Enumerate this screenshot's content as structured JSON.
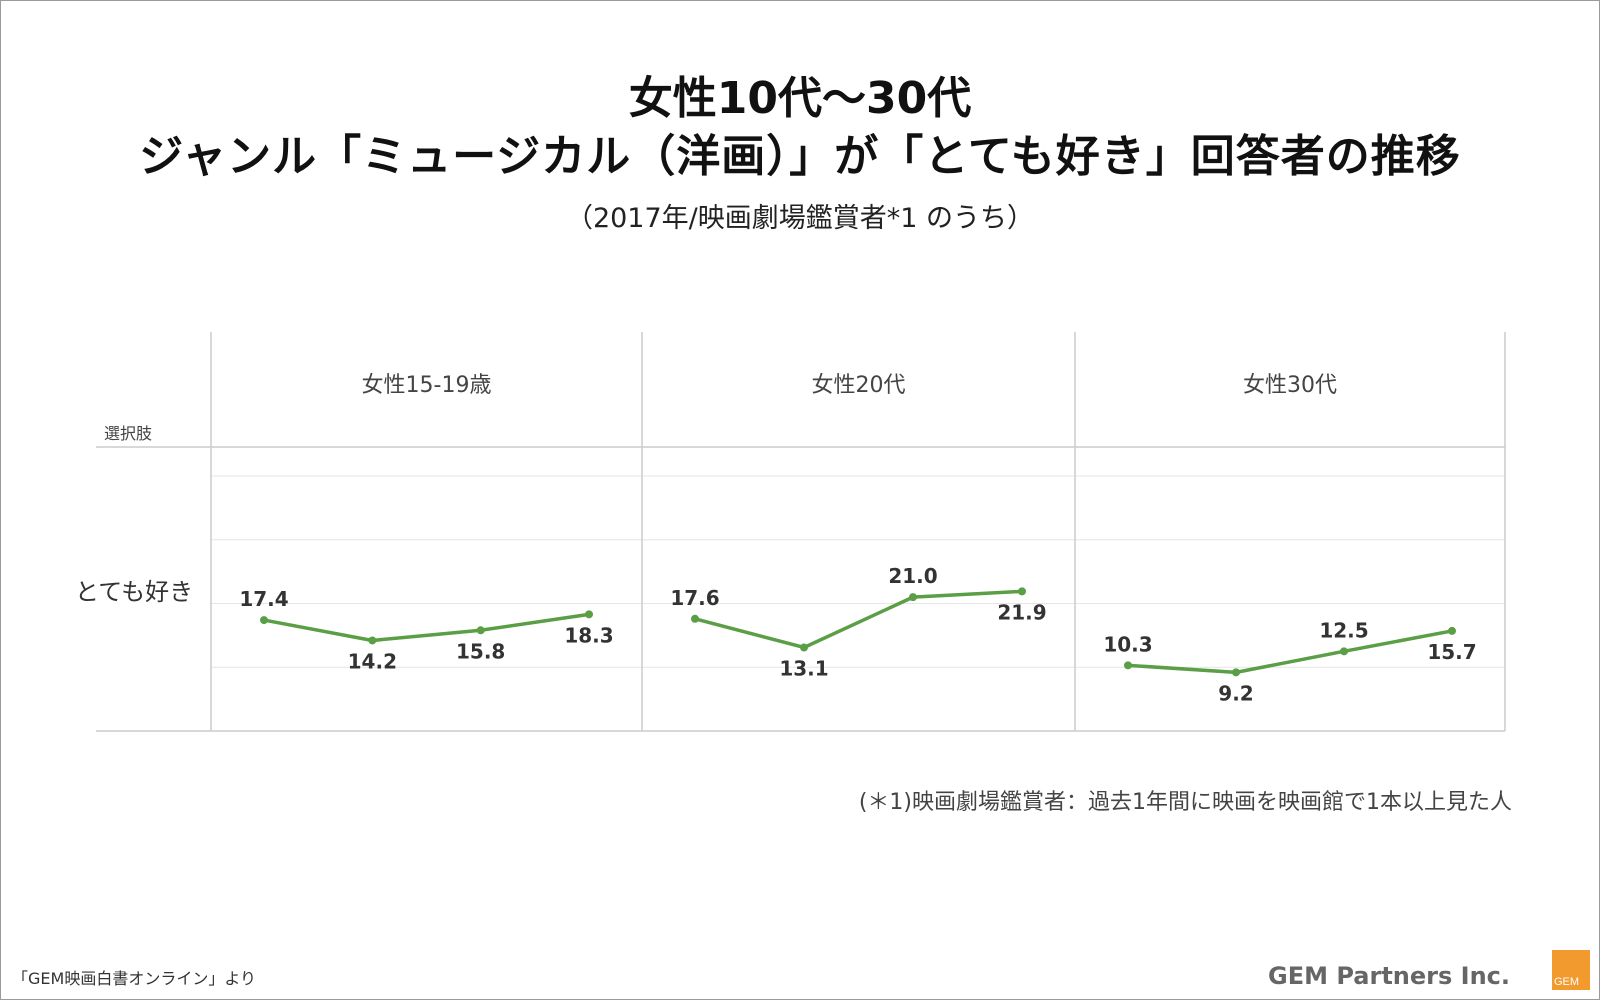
{
  "title_line1": "女性10代〜30代",
  "title_line2": "ジャンル「ミュージカル（洋画）」が「とても好き」回答者の推移",
  "subtitle": "（2017年/映画劇場鑑賞者*1 のうち）",
  "choice_header": "選択肢",
  "row_label": "とても好き",
  "footnote": "(＊1)映画劇場鑑賞者：過去1年間に映画を映画館で1本以上見た人",
  "source": "「GEM映画白書オンライン」より",
  "brand": "GEM Partners Inc.",
  "logo_text": "GEM",
  "colors": {
    "line": "#5a9e45",
    "grid": "#e6e6e6",
    "axis": "#cccccc"
  },
  "chart_data": {
    "type": "line",
    "row": "とても好き",
    "ylim": [
      0,
      40
    ],
    "panels": [
      {
        "name": "女性15-19歳",
        "values": [
          17.4,
          14.2,
          15.8,
          18.3
        ]
      },
      {
        "name": "女性20代",
        "values": [
          17.6,
          13.1,
          21.0,
          21.9
        ]
      },
      {
        "name": "女性30代",
        "values": [
          10.3,
          9.2,
          12.5,
          15.7
        ]
      }
    ],
    "label_positions": [
      [
        "above",
        "below",
        "below",
        "below"
      ],
      [
        "above",
        "below",
        "above",
        "below"
      ],
      [
        "above",
        "below",
        "above",
        "below"
      ]
    ]
  }
}
